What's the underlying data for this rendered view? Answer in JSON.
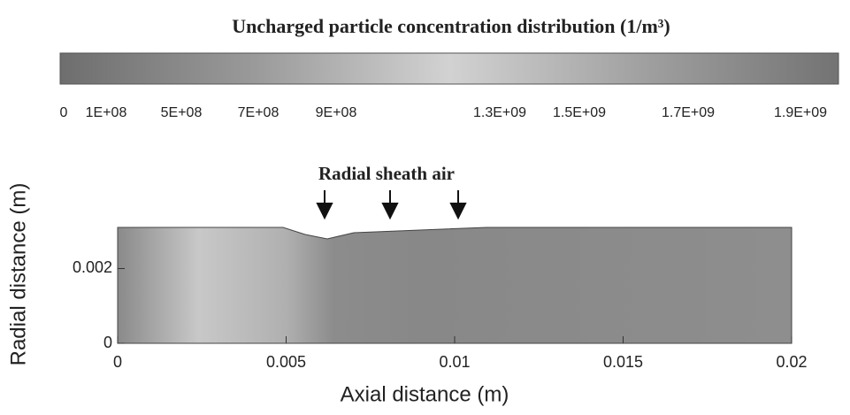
{
  "chart_data": {
    "type": "contour",
    "title": "Uncharged particle concentration distribution  (1/m³)",
    "colorbar_ticks": [
      0,
      {
        "value": 100000000,
        "label": "1E+08"
      },
      {
        "value": 500000000,
        "label": "5E+08"
      },
      {
        "value": 700000000,
        "label": "7E+08"
      },
      {
        "value": 900000000,
        "label": "9E+08"
      },
      {
        "value": 1300000000,
        "label": "1.3E+09"
      },
      {
        "value": 1500000000,
        "label": "1.5E+09"
      },
      {
        "value": 1700000000,
        "label": "1.7E+09"
      },
      {
        "value": 1900000000,
        "label": "1.9E+09"
      }
    ],
    "annotation": "Radial sheath air",
    "x_label": "Axial distance (m)",
    "y_label": "Radial distance (m)",
    "xlim": [
      0,
      0.02
    ],
    "xticks": [
      0,
      0.005,
      0.01,
      0.015,
      0.02
    ],
    "ylim": [
      0,
      0.0031
    ],
    "yticks": [
      0,
      0.002
    ]
  }
}
